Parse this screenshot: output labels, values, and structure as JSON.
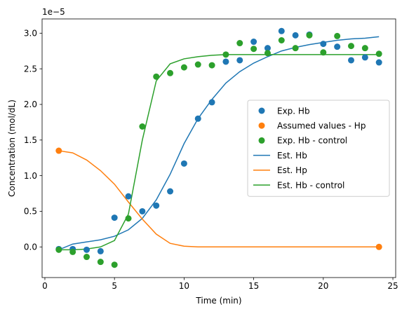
{
  "chart_data": {
    "type": "scatter",
    "xlabel": "Time (min)",
    "ylabel": "Concentration (mol/dL)",
    "y_offset_text": "1e−5",
    "xlim": [
      -0.2,
      25.2
    ],
    "ylim": [
      -0.43,
      3.2
    ],
    "x_ticks": [
      0,
      5,
      10,
      15,
      20,
      25
    ],
    "y_ticks": [
      0.0,
      0.5,
      1.0,
      1.5,
      2.0,
      2.5,
      3.0
    ],
    "y_tick_labels": [
      "0.0",
      "0.5",
      "1.0",
      "1.5",
      "2.0",
      "2.5",
      "3.0"
    ],
    "grid": false,
    "legend_position": "center-right",
    "scatter_series": [
      {
        "name": "Exp. Hb",
        "color": "#1f77b4",
        "x": [
          1,
          2,
          3,
          4,
          5,
          6,
          7,
          8,
          9,
          10,
          11,
          12,
          13,
          14,
          15,
          16,
          17,
          18,
          19,
          20,
          21,
          22,
          23,
          24
        ],
        "y": [
          -0.03,
          -0.03,
          -0.04,
          -0.06,
          0.41,
          0.71,
          0.5,
          0.58,
          0.78,
          1.17,
          1.8,
          2.03,
          2.6,
          2.62,
          2.88,
          2.79,
          3.03,
          2.97,
          2.98,
          2.85,
          2.81,
          2.62,
          2.66,
          2.59
        ]
      },
      {
        "name": "Assumed values - Hp",
        "color": "#ff7f0e",
        "x": [
          1,
          24
        ],
        "y": [
          1.35,
          0.0
        ]
      },
      {
        "name": "Exp. Hb - control",
        "color": "#2ca02c",
        "x": [
          1,
          2,
          3,
          4,
          5,
          6,
          7,
          8,
          9,
          10,
          11,
          12,
          13,
          14,
          15,
          16,
          17,
          18,
          19,
          20,
          21,
          22,
          23,
          24
        ],
        "y": [
          -0.04,
          -0.07,
          -0.14,
          -0.21,
          -0.25,
          0.4,
          1.69,
          2.39,
          2.44,
          2.52,
          2.56,
          2.55,
          2.7,
          2.86,
          2.78,
          2.72,
          2.9,
          2.79,
          2.97,
          2.73,
          2.96,
          2.82,
          2.79,
          2.71
        ]
      }
    ],
    "line_series": [
      {
        "name": "Est. Hb",
        "color": "#1f77b4",
        "x": [
          1,
          2,
          3,
          4,
          5,
          6,
          7,
          8,
          9,
          10,
          11,
          12,
          13,
          14,
          15,
          16,
          17,
          18,
          19,
          20,
          21,
          22,
          23,
          24
        ],
        "y": [
          -0.04,
          0.04,
          0.07,
          0.1,
          0.15,
          0.24,
          0.4,
          0.66,
          1.02,
          1.45,
          1.8,
          2.07,
          2.3,
          2.46,
          2.58,
          2.67,
          2.75,
          2.8,
          2.84,
          2.87,
          2.9,
          2.92,
          2.93,
          2.95
        ]
      },
      {
        "name": "Est. Hp",
        "color": "#ff7f0e",
        "x": [
          1,
          2,
          3,
          4,
          5,
          6,
          7,
          8,
          9,
          10,
          11,
          12,
          13,
          14,
          15,
          16,
          17,
          18,
          19,
          20,
          21,
          22,
          23,
          24
        ],
        "y": [
          1.35,
          1.32,
          1.22,
          1.07,
          0.88,
          0.63,
          0.39,
          0.18,
          0.05,
          0.01,
          0.0,
          0.0,
          0.0,
          0.0,
          0.0,
          0.0,
          0.0,
          0.0,
          0.0,
          0.0,
          0.0,
          0.0,
          0.0,
          0.0
        ]
      },
      {
        "name": "Est. Hb - control",
        "color": "#2ca02c",
        "x": [
          1,
          2,
          3,
          4,
          5,
          6,
          7,
          8,
          9,
          10,
          11,
          12,
          13,
          14,
          15,
          16,
          17,
          18,
          19,
          20,
          21,
          22,
          23,
          24
        ],
        "y": [
          -0.04,
          -0.04,
          -0.03,
          0.0,
          0.09,
          0.46,
          1.5,
          2.33,
          2.57,
          2.64,
          2.67,
          2.69,
          2.7,
          2.7,
          2.7,
          2.7,
          2.7,
          2.7,
          2.7,
          2.7,
          2.7,
          2.7,
          2.7,
          2.7
        ]
      }
    ]
  }
}
